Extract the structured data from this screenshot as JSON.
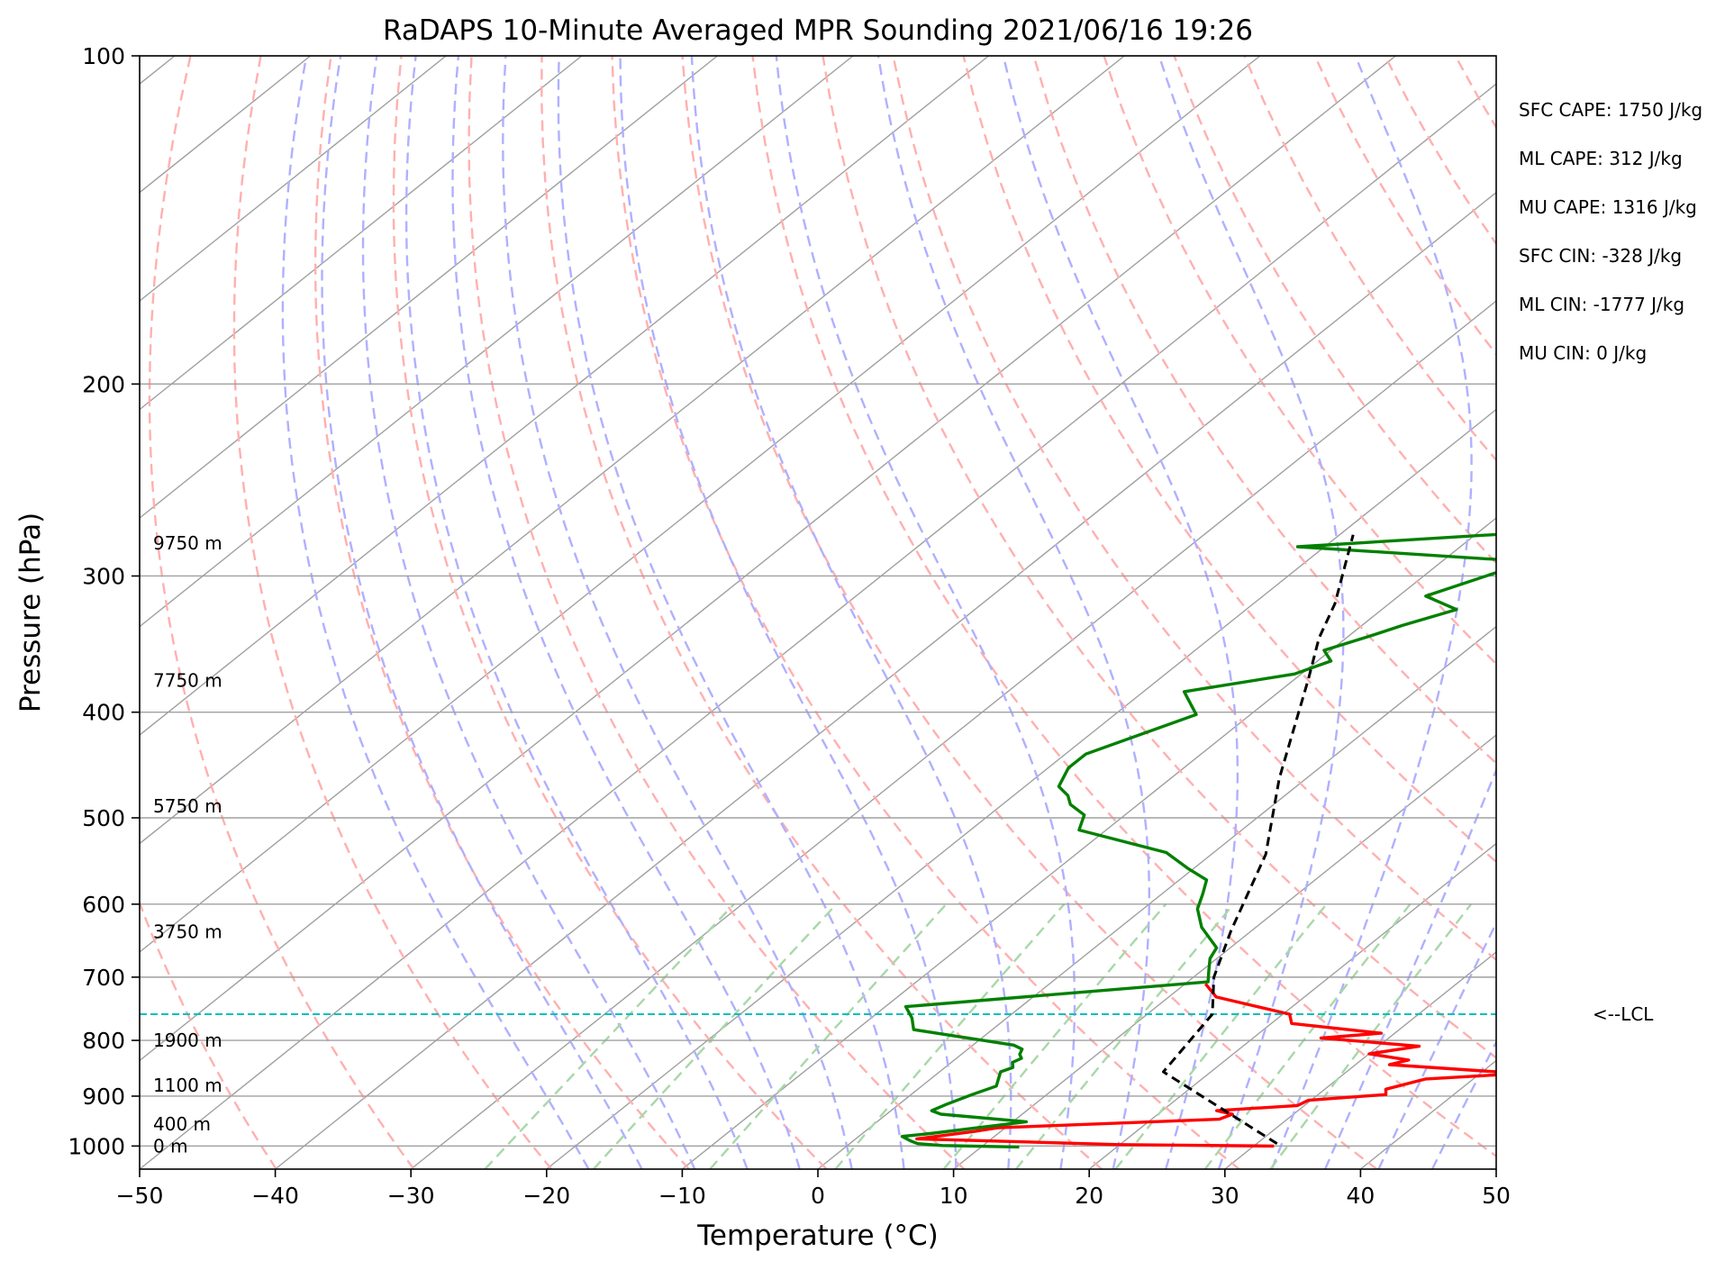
{
  "chart_data": {
    "type": "line",
    "title": "RaDAPS 10-Minute Averaged MPR Sounding 2021/06/16 19:26",
    "xlabel": "Temperature (°C)",
    "ylabel": "Pressure (hPa)",
    "xlim": [
      -50,
      50
    ],
    "ylim": [
      1050,
      100
    ],
    "y_scale": "log",
    "x_ticks": [
      -50,
      -40,
      -30,
      -20,
      -10,
      0,
      10,
      20,
      30,
      40,
      50
    ],
    "x_tick_labels": [
      "−50",
      "−40",
      "−30",
      "−20",
      "−10",
      "0",
      "10",
      "20",
      "30",
      "40",
      "50"
    ],
    "y_ticks": [
      100,
      200,
      300,
      400,
      500,
      600,
      700,
      800,
      900,
      1000
    ],
    "y_tick_labels": [
      "100",
      "200",
      "300",
      "400",
      "500",
      "600",
      "700",
      "800",
      "900",
      "1000"
    ],
    "grid": true,
    "colors": {
      "temperature": "#ff0000",
      "dewpoint": "#008000",
      "parcel": "#000000",
      "lcl_line": "#00bfbf",
      "isotherm": "#a0a0a0",
      "dry_adiabat": "#ffb0b0",
      "moist_adiabat": "#b0b0ff",
      "mixing_ratio": "#a8d8a8"
    },
    "series": [
      {
        "key": "temperature",
        "points": [
          [
            31.5,
            1000
          ],
          [
            20,
            997
          ],
          [
            4.5,
            985
          ],
          [
            8,
            970
          ],
          [
            9.5,
            962
          ],
          [
            25,
            945
          ],
          [
            25.5,
            935
          ],
          [
            24,
            928
          ],
          [
            29.5,
            918
          ],
          [
            29.8,
            908
          ],
          [
            35,
            897
          ],
          [
            34.5,
            887
          ],
          [
            36.5,
            868
          ],
          [
            43,
            858
          ],
          [
            32.5,
            842
          ],
          [
            33.5,
            834
          ],
          [
            30,
            823
          ],
          [
            33,
            810
          ],
          [
            25,
            796
          ],
          [
            29,
            788
          ],
          [
            21.5,
            772
          ],
          [
            20.5,
            757
          ],
          [
            13.5,
            730
          ],
          [
            11.5,
            710
          ]
        ]
      },
      {
        "key": "dewpoint",
        "points": [
          [
            12.8,
            1002
          ],
          [
            7,
            999
          ],
          [
            5,
            995
          ],
          [
            4.2,
            989
          ],
          [
            3.2,
            980
          ],
          [
            5,
            974
          ],
          [
            11,
            950
          ],
          [
            4,
            935
          ],
          [
            3,
            928
          ],
          [
            3.5,
            916
          ],
          [
            4.5,
            897
          ],
          [
            5.5,
            881
          ],
          [
            5,
            868
          ],
          [
            4.5,
            855
          ],
          [
            5,
            847
          ],
          [
            4.5,
            838
          ],
          [
            4.8,
            831
          ],
          [
            4.3,
            824
          ],
          [
            4,
            815
          ],
          [
            3,
            808
          ],
          [
            -5.8,
            782
          ],
          [
            -7,
            763
          ],
          [
            -8.5,
            745
          ],
          [
            11.5,
            707
          ],
          [
            10.5,
            690
          ],
          [
            9.5,
            673
          ],
          [
            9,
            658
          ],
          [
            6,
            630
          ],
          [
            4,
            606
          ],
          [
            3,
            587
          ],
          [
            2,
            570
          ],
          [
            -0.5,
            556
          ],
          [
            -3.5,
            538
          ],
          [
            -12,
            513
          ],
          [
            -13,
            497
          ],
          [
            -15,
            486
          ],
          [
            -16,
            477
          ],
          [
            -17.5,
            468
          ],
          [
            -18.5,
            450
          ],
          [
            -18.5,
            437
          ],
          [
            -14,
            402
          ],
          [
            -17,
            383
          ],
          [
            -10.5,
            369
          ],
          [
            -9,
            359
          ],
          [
            -10.5,
            351
          ],
          [
            -8.5,
            341
          ],
          [
            -7,
            333
          ],
          [
            -4.5,
            322
          ],
          [
            -8,
            313
          ],
          [
            -5,
            298
          ],
          [
            -3.5,
            291
          ],
          [
            -22,
            282
          ],
          [
            -5,
            273
          ],
          [
            -3.5,
            282
          ],
          [
            -4,
            290
          ]
        ]
      },
      {
        "key": "parcel",
        "points": [
          [
            31.5,
            995
          ],
          [
            16.5,
            855
          ],
          [
            14.8,
            757
          ],
          [
            11.5,
            700
          ],
          [
            8.5,
            635
          ],
          [
            4,
            540
          ],
          [
            -2,
            460
          ],
          [
            -9,
            373
          ],
          [
            -12,
            342
          ],
          [
            -14,
            318
          ],
          [
            -19,
            275
          ]
        ]
      }
    ],
    "height_labels": [
      {
        "text": "0 m",
        "pressure": 1000
      },
      {
        "text": "400 m",
        "pressure": 955
      },
      {
        "text": "1100 m",
        "pressure": 880
      },
      {
        "text": "1900 m",
        "pressure": 800
      },
      {
        "text": "3750 m",
        "pressure": 636
      },
      {
        "text": "5750 m",
        "pressure": 488
      },
      {
        "text": "7750 m",
        "pressure": 374
      },
      {
        "text": "9750 m",
        "pressure": 280
      }
    ],
    "lcl": {
      "pressure": 757,
      "label": "<--LCL"
    },
    "indices": [
      "SFC CAPE: 1750 J/kg",
      "ML CAPE: 312 J/kg",
      "MU CAPE: 1316 J/kg",
      "SFC CIN: -328 J/kg",
      "ML CIN: -1777 J/kg",
      "MU CIN: 0 J/kg"
    ]
  }
}
